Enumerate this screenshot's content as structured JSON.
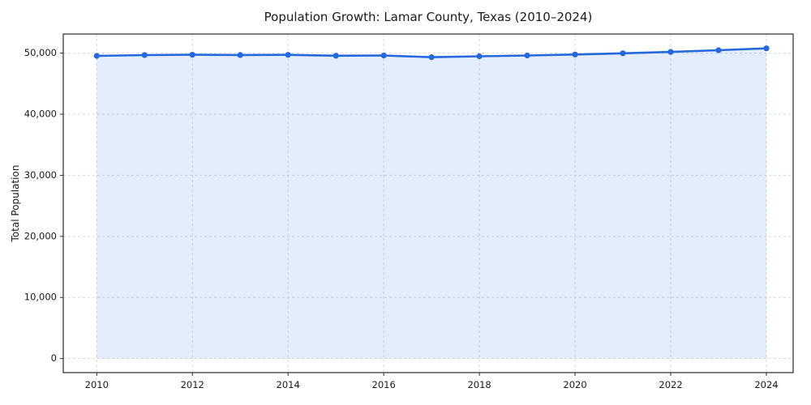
{
  "figure": {
    "background": "#ffffff"
  },
  "chart_data": {
    "type": "line",
    "title": "Population Growth: Lamar County, Texas (2010–2024)",
    "xlabel": "",
    "ylabel": "Total Population",
    "x": [
      2010,
      2011,
      2012,
      2013,
      2014,
      2015,
      2016,
      2017,
      2018,
      2019,
      2020,
      2021,
      2022,
      2023,
      2024
    ],
    "series": [
      {
        "name": "Total Population",
        "values": [
          49550,
          49680,
          49730,
          49700,
          49720,
          49570,
          49620,
          49340,
          49480,
          49620,
          49780,
          49980,
          50200,
          50480,
          50780
        ],
        "color": "#2468dc",
        "marker": "circle",
        "fill_under": true,
        "fill_to": 0,
        "fill_color": "rgba(36,104,220,0.12)"
      }
    ],
    "xticks": {
      "values": [
        2010,
        2012,
        2014,
        2016,
        2018,
        2020,
        2022,
        2024
      ],
      "labels": [
        "2010",
        "2012",
        "2014",
        "2016",
        "2018",
        "2020",
        "2022",
        "2024"
      ]
    },
    "yticks": {
      "values": [
        0,
        10000,
        20000,
        30000,
        40000,
        50000
      ],
      "labels": [
        "0",
        "10,000",
        "20,000",
        "30,000",
        "40,000",
        "50,000"
      ]
    },
    "xlim": [
      2009.3,
      2024.56
    ],
    "ylim": [
      -2300,
      53130
    ],
    "grid": true,
    "grid_color": "#d9d9d9",
    "grid_dash": "3 3",
    "legend": "none",
    "spine_color": "#2b2b2b",
    "tick_color": "#2b2b2b",
    "text_color": "#1a1a1a"
  }
}
